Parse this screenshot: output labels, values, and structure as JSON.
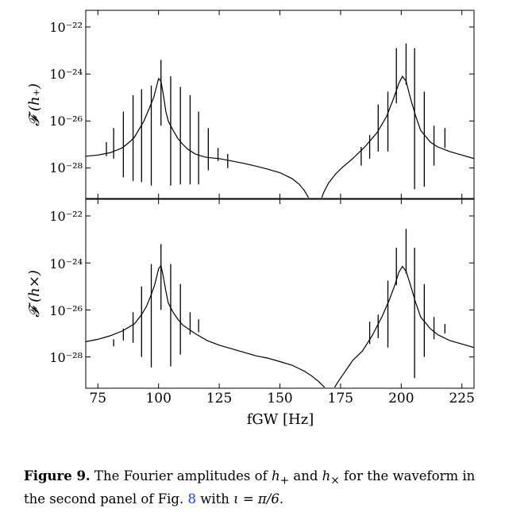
{
  "chart_data": [
    {
      "type": "line",
      "ylabel": "𝓕 (h₊)",
      "yscale": "log",
      "ylim": [
        1e-29,
        1e-22
      ],
      "xlim": [
        70,
        230
      ],
      "yticks": [
        "10⁻²²",
        "10⁻²⁴",
        "10⁻²⁶",
        "10⁻²⁸"
      ],
      "show_xticklabels": false,
      "grid": false,
      "continuum": [
        [
          70,
          -27.5
        ],
        [
          75,
          -27.45
        ],
        [
          80,
          -27.35
        ],
        [
          85,
          -27.15
        ],
        [
          88,
          -26.9
        ],
        [
          90,
          -26.7
        ],
        [
          92,
          -26.35
        ],
        [
          94,
          -26.0
        ],
        [
          96,
          -25.5
        ],
        [
          98,
          -25.0
        ],
        [
          99,
          -24.6
        ],
        [
          100,
          -24.2
        ],
        [
          101,
          -24.3
        ],
        [
          102,
          -24.9
        ],
        [
          103,
          -25.6
        ],
        [
          104,
          -26.0
        ],
        [
          106,
          -26.4
        ],
        [
          108,
          -26.75
        ],
        [
          110,
          -27.0
        ],
        [
          112,
          -27.2
        ],
        [
          115,
          -27.4
        ],
        [
          118,
          -27.5
        ],
        [
          120,
          -27.55
        ],
        [
          125,
          -27.6
        ],
        [
          130,
          -27.7
        ],
        [
          135,
          -27.8
        ],
        [
          140,
          -27.92
        ],
        [
          145,
          -28.05
        ],
        [
          150,
          -28.2
        ],
        [
          155,
          -28.45
        ],
        [
          158,
          -28.7
        ],
        [
          160,
          -28.95
        ],
        [
          162,
          -29.3
        ],
        [
          163.5,
          -29.65
        ],
        [
          165,
          -29.9
        ],
        [
          166.5,
          -29.5
        ],
        [
          168,
          -29.05
        ],
        [
          170,
          -28.65
        ],
        [
          173,
          -28.25
        ],
        [
          176,
          -27.95
        ],
        [
          180,
          -27.6
        ],
        [
          185,
          -27.1
        ],
        [
          190,
          -26.5
        ],
        [
          194,
          -25.8
        ],
        [
          197,
          -25.0
        ],
        [
          199,
          -24.4
        ],
        [
          200.5,
          -24.1
        ],
        [
          202,
          -24.3
        ],
        [
          204,
          -25.1
        ],
        [
          206,
          -25.8
        ],
        [
          208,
          -26.4
        ],
        [
          212,
          -26.9
        ],
        [
          215,
          -27.1
        ],
        [
          220,
          -27.3
        ],
        [
          225,
          -27.45
        ],
        [
          230,
          -27.6
        ]
      ],
      "lines": [
        {
          "f": 78.5,
          "top": -26.9,
          "bottom": -27.5
        },
        {
          "f": 81.5,
          "top": -26.3,
          "bottom": -27.6
        },
        {
          "f": 85.5,
          "top": -25.6,
          "bottom": -28.4
        },
        {
          "f": 89.5,
          "top": -24.9,
          "bottom": -28.55
        },
        {
          "f": 93.0,
          "top": -24.65,
          "bottom": -28.6
        },
        {
          "f": 97.0,
          "top": -24.5,
          "bottom": -28.75
        },
        {
          "f": 101.0,
          "top": -23.4,
          "bottom": -26.2
        },
        {
          "f": 105.0,
          "top": -24.1,
          "bottom": -28.75
        },
        {
          "f": 109.0,
          "top": -24.55,
          "bottom": -28.7
        },
        {
          "f": 113.0,
          "top": -24.9,
          "bottom": -28.7
        },
        {
          "f": 116.5,
          "top": -25.6,
          "bottom": -28.7
        },
        {
          "f": 120.5,
          "top": -26.3,
          "bottom": -28.1
        },
        {
          "f": 124.5,
          "top": -27.15,
          "bottom": -27.7
        },
        {
          "f": 128.5,
          "top": -27.4,
          "bottom": -28.0
        },
        {
          "f": 183.5,
          "top": -27.1,
          "bottom": -27.9
        },
        {
          "f": 187.0,
          "top": -26.6,
          "bottom": -27.6
        },
        {
          "f": 190.5,
          "top": -25.3,
          "bottom": -27.3
        },
        {
          "f": 194.5,
          "top": -24.75,
          "bottom": -27.3
        },
        {
          "f": 198.0,
          "top": -22.9,
          "bottom": -25.25
        },
        {
          "f": 202.0,
          "top": -22.7,
          "bottom": -24.45
        },
        {
          "f": 205.5,
          "top": -22.9,
          "bottom": -28.9
        },
        {
          "f": 209.5,
          "top": -24.75,
          "bottom": -28.8
        },
        {
          "f": 213.5,
          "top": -26.2,
          "bottom": -27.9
        },
        {
          "f": 218.0,
          "top": -26.3,
          "bottom": -27.15
        }
      ]
    },
    {
      "type": "line",
      "ylabel": "𝓕 (h×)",
      "xlabel": "fGW [Hz]",
      "yscale": "log",
      "ylim": [
        1e-29,
        1e-22
      ],
      "xlim": [
        70,
        230
      ],
      "xticks": [
        75,
        100,
        125,
        150,
        175,
        200,
        225
      ],
      "yticks": [
        "10⁻²²",
        "10⁻²⁴",
        "10⁻²⁶",
        "10⁻²⁸"
      ],
      "grid": false,
      "continuum": [
        [
          70,
          -27.35
        ],
        [
          75,
          -27.25
        ],
        [
          80,
          -27.1
        ],
        [
          85,
          -26.9
        ],
        [
          90,
          -26.6
        ],
        [
          93,
          -26.2
        ],
        [
          95,
          -25.85
        ],
        [
          97,
          -25.35
        ],
        [
          98.5,
          -24.9
        ],
        [
          100,
          -24.25
        ],
        [
          101,
          -24.1
        ],
        [
          102,
          -24.6
        ],
        [
          103,
          -25.2
        ],
        [
          104,
          -25.7
        ],
        [
          106,
          -26.1
        ],
        [
          108,
          -26.4
        ],
        [
          110,
          -26.65
        ],
        [
          115,
          -27.0
        ],
        [
          120,
          -27.3
        ],
        [
          125,
          -27.5
        ],
        [
          130,
          -27.65
        ],
        [
          135,
          -27.8
        ],
        [
          140,
          -27.95
        ],
        [
          145,
          -28.05
        ],
        [
          150,
          -28.2
        ],
        [
          155,
          -28.35
        ],
        [
          160,
          -28.6
        ],
        [
          163,
          -28.8
        ],
        [
          166,
          -29.05
        ],
        [
          168,
          -29.25
        ],
        [
          169.5,
          -29.45
        ],
        [
          171,
          -29.5
        ],
        [
          172.5,
          -29.3
        ],
        [
          174,
          -29.05
        ],
        [
          176,
          -28.75
        ],
        [
          178,
          -28.45
        ],
        [
          180,
          -28.15
        ],
        [
          184,
          -27.75
        ],
        [
          188,
          -27.1
        ],
        [
          192,
          -26.3
        ],
        [
          195,
          -25.6
        ],
        [
          197.5,
          -24.9
        ],
        [
          199,
          -24.4
        ],
        [
          200.5,
          -24.15
        ],
        [
          202,
          -24.35
        ],
        [
          204,
          -25.0
        ],
        [
          206,
          -25.7
        ],
        [
          208,
          -26.3
        ],
        [
          212,
          -26.8
        ],
        [
          215,
          -27.05
        ],
        [
          220,
          -27.3
        ],
        [
          225,
          -27.45
        ],
        [
          230,
          -27.6
        ]
      ],
      "lines": [
        {
          "f": 81.5,
          "top": -27.25,
          "bottom": -27.55
        },
        {
          "f": 85.5,
          "top": -26.8,
          "bottom": -27.3
        },
        {
          "f": 89.5,
          "top": -26.1,
          "bottom": -27.4
        },
        {
          "f": 93.0,
          "top": -25.0,
          "bottom": -28.0
        },
        {
          "f": 97.0,
          "top": -24.05,
          "bottom": -28.45
        },
        {
          "f": 101.0,
          "top": -23.2,
          "bottom": -26.0
        },
        {
          "f": 105.0,
          "top": -24.05,
          "bottom": -28.4
        },
        {
          "f": 109.0,
          "top": -24.9,
          "bottom": -27.9
        },
        {
          "f": 113.0,
          "top": -26.1,
          "bottom": -27.05
        },
        {
          "f": 116.5,
          "top": -26.4,
          "bottom": -26.95
        },
        {
          "f": 187.0,
          "top": -26.5,
          "bottom": -27.45
        },
        {
          "f": 190.5,
          "top": -26.2,
          "bottom": -27.2
        },
        {
          "f": 194.5,
          "top": -24.75,
          "bottom": -27.6
        },
        {
          "f": 198.0,
          "top": -23.35,
          "bottom": -24.95
        },
        {
          "f": 202.0,
          "top": -22.55,
          "bottom": -24.45
        },
        {
          "f": 205.5,
          "top": -23.35,
          "bottom": -28.9
        },
        {
          "f": 209.5,
          "top": -24.9,
          "bottom": -28.0
        },
        {
          "f": 213.5,
          "top": -26.3,
          "bottom": -27.25
        },
        {
          "f": 218.0,
          "top": -26.6,
          "bottom": -27.0
        }
      ]
    }
  ],
  "caption": {
    "label": "Figure 9.",
    "text_a": " The Fourier amplitudes of ",
    "hplus": "h",
    "hplus_sub": "+",
    "text_b": " and ",
    "hcross": "h",
    "hcross_sub": "×",
    "text_c": " for the waveform in the second panel of Fig. ",
    "ref": "8",
    "text_d": " with ",
    "iota": "ι = π/6",
    "text_e": "."
  }
}
